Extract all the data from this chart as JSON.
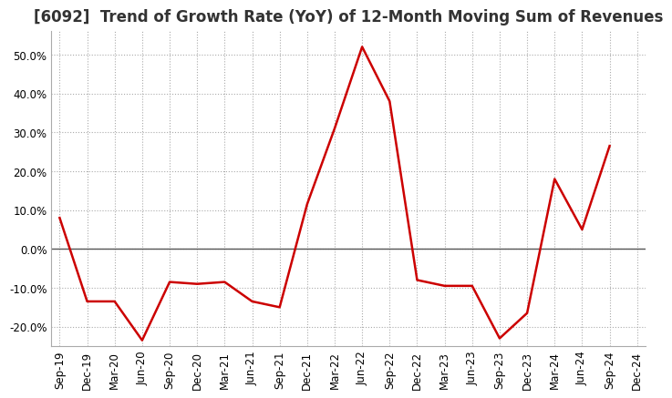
{
  "title": "[6092]  Trend of Growth Rate (YoY) of 12-Month Moving Sum of Revenues",
  "x_labels": [
    "Sep-19",
    "Dec-19",
    "Mar-20",
    "Jun-20",
    "Sep-20",
    "Dec-20",
    "Mar-21",
    "Jun-21",
    "Sep-21",
    "Dec-21",
    "Mar-22",
    "Jun-22",
    "Sep-22",
    "Dec-22",
    "Mar-23",
    "Jun-23",
    "Sep-23",
    "Dec-23",
    "Mar-24",
    "Jun-24",
    "Sep-24",
    "Dec-24"
  ],
  "y_values": [
    8.0,
    -13.5,
    -13.5,
    -23.5,
    -8.5,
    -9.0,
    -8.5,
    -13.5,
    -15.0,
    11.5,
    31.0,
    52.0,
    38.0,
    -8.0,
    -9.5,
    -9.5,
    -23.0,
    -16.5,
    18.0,
    5.0,
    26.5,
    null
  ],
  "ylim": [
    -25,
    56
  ],
  "yticks": [
    -20.0,
    -10.0,
    0.0,
    10.0,
    20.0,
    30.0,
    40.0,
    50.0
  ],
  "line_color": "#cc0000",
  "background_color": "#ffffff",
  "grid_color": "#aaaaaa",
  "zero_line_color": "#555555",
  "title_fontsize": 12,
  "tick_fontsize": 8.5,
  "title_color": "#333333"
}
